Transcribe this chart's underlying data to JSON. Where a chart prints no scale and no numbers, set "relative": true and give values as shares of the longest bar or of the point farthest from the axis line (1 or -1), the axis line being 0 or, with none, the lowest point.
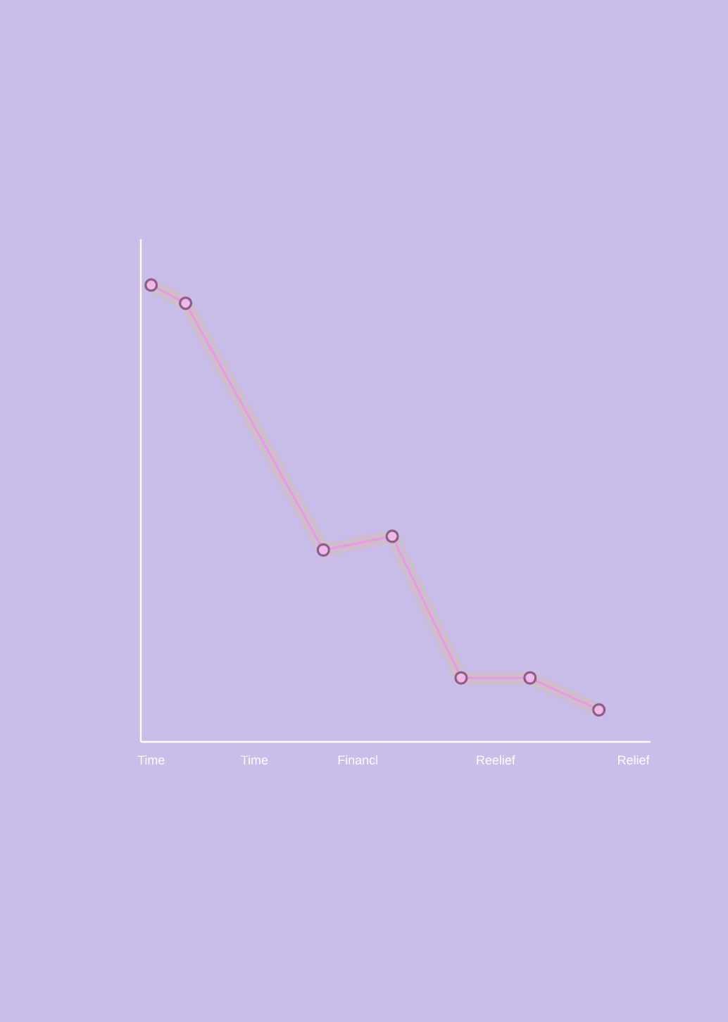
{
  "chart_data": {
    "type": "line",
    "relative": true,
    "marker": "circle",
    "line_style": "solid",
    "categories": [
      "Time",
      null,
      null,
      "Time",
      null,
      null,
      "Financl",
      null,
      null,
      null,
      "Reelief",
      null,
      null,
      null,
      "Relief"
    ],
    "series": [
      {
        "color": "#e79ae0",
        "values": [
          1,
          0.96,
          null,
          null,
          null,
          0.42,
          null,
          0.45,
          null,
          0.14,
          null,
          0.14,
          null,
          0.07,
          null
        ]
      }
    ]
  }
}
